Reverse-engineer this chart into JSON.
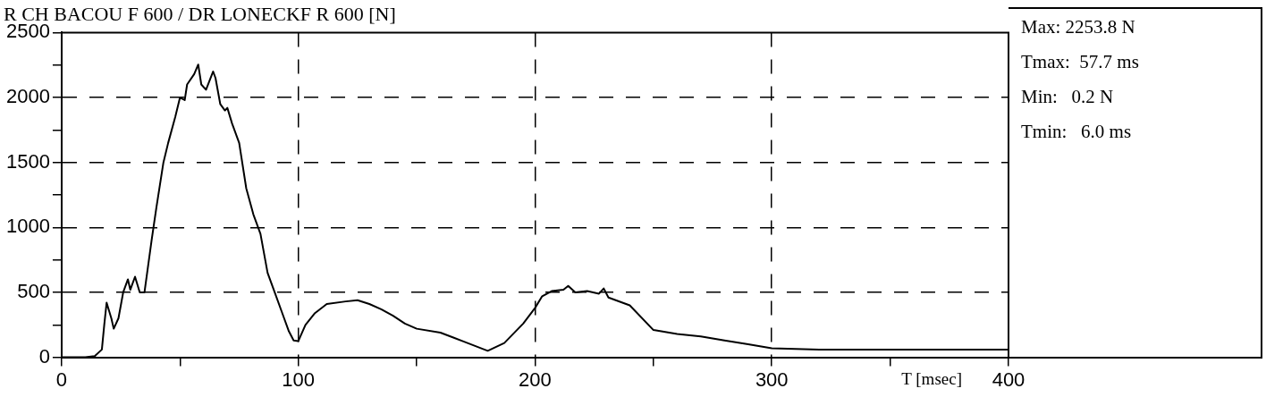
{
  "chart_data": {
    "type": "line",
    "title": "R CH BACOU F 600 / DR LONECKF R 600 [N]",
    "xlabel": "T [msec]",
    "annotations": [
      "Max: 2253.8 N",
      "Tmax:  57.7 ms",
      "Min:   0.2 N",
      "Tmin:   6.0 ms"
    ],
    "series": [
      {
        "color": "#000000",
        "x": [
          0,
          6,
          10,
          14,
          17,
          18,
          19,
          21,
          22,
          24,
          26,
          28,
          29,
          31,
          33,
          35,
          38,
          40,
          43,
          45,
          48,
          50,
          52,
          53,
          56,
          57.7,
          59,
          61,
          64,
          65,
          67,
          69,
          70,
          72,
          75,
          78,
          81,
          84,
          87,
          90,
          93,
          96,
          98,
          100,
          103,
          107,
          112,
          120,
          125,
          130,
          135,
          140,
          145,
          150,
          160,
          170,
          180,
          187,
          195,
          200,
          203,
          207,
          212,
          214,
          217,
          222,
          227,
          229,
          231,
          240,
          250,
          260,
          270,
          280,
          290,
          300,
          320,
          350,
          400
        ],
        "values": [
          0,
          0,
          0,
          10,
          60,
          250,
          420,
          300,
          220,
          300,
          500,
          600,
          520,
          620,
          500,
          500,
          900,
          1150,
          1500,
          1650,
          1850,
          2000,
          1980,
          2100,
          2180,
          2253.8,
          2100,
          2060,
          2200,
          2150,
          1950,
          1900,
          1920,
          1800,
          1650,
          1300,
          1100,
          950,
          650,
          500,
          350,
          200,
          130,
          125,
          250,
          340,
          410,
          430,
          440,
          410,
          370,
          320,
          260,
          220,
          190,
          120,
          50,
          110,
          260,
          380,
          470,
          510,
          520,
          550,
          500,
          510,
          490,
          530,
          460,
          400,
          210,
          180,
          160,
          130,
          100,
          70,
          60,
          60,
          60
        ]
      }
    ],
    "xlim": [
      0,
      400
    ],
    "xticks": [
      0,
      {
        "value": 50,
        "label": null
      },
      100,
      {
        "value": 150,
        "label": null
      },
      200,
      {
        "value": 250,
        "label": null
      },
      300,
      {
        "value": 350,
        "label": null
      },
      400
    ],
    "ylim": [
      0,
      2500
    ],
    "yticks": [
      0,
      {
        "value": 250,
        "label": null
      },
      500,
      {
        "value": 750,
        "label": null
      },
      1000,
      {
        "value": 1250,
        "label": null
      },
      1500,
      {
        "value": 1750,
        "label": null
      },
      2000,
      {
        "value": 2250,
        "label": null
      },
      2500
    ],
    "grid": true,
    "legend": false,
    "marker": "none",
    "line_style": "solid"
  }
}
